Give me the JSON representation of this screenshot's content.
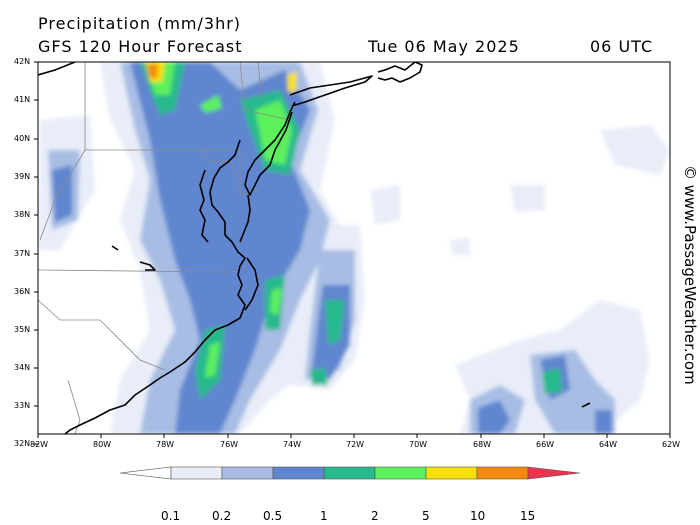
{
  "header": {
    "title": "Precipitation (mm/3hr)",
    "subtitle": "GFS 120 Hour Forecast",
    "date": "Tue 06 May 2025",
    "time": "06 UTC"
  },
  "map": {
    "lat_labels": [
      "42N",
      "41N",
      "40N",
      "39N",
      "38N",
      "37N",
      "36N",
      "35N",
      "34N",
      "33N",
      "32N"
    ],
    "lon_labels": [
      "82W",
      "80W",
      "78W",
      "76W",
      "74W",
      "72W",
      "70W",
      "68W",
      "66W",
      "64W",
      "62W"
    ]
  },
  "colorbar": {
    "labels": [
      "0.1",
      "0.2",
      "0.5",
      "1",
      "2",
      "5",
      "10",
      "15"
    ],
    "colors": [
      "#ffffff",
      "#e8edf8",
      "#a7bde4",
      "#5f86cf",
      "#27b98c",
      "#5df05d",
      "#f8e000",
      "#f48a0c",
      "#e8344c"
    ]
  },
  "watermark": "© www.PassageWeather.com"
}
